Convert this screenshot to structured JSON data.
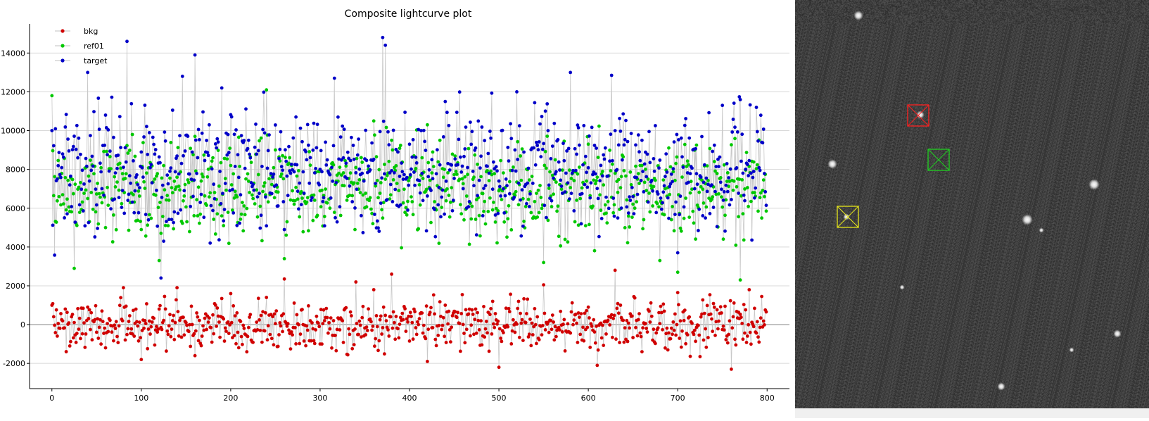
{
  "chart_data": {
    "type": "line",
    "title": "Composite lightcurve plot",
    "xlabel": "",
    "ylabel": "",
    "xlim": [
      -25,
      825
    ],
    "ylim": [
      -3300,
      15500
    ],
    "xticks": [
      0,
      100,
      200,
      300,
      400,
      500,
      600,
      700,
      800
    ],
    "yticks": [
      -2000,
      0,
      2000,
      4000,
      6000,
      8000,
      10000,
      12000,
      14000
    ],
    "grid": true,
    "legend_position": "top-left",
    "n_points": 800,
    "series": [
      {
        "name": "bkg",
        "color": "#d00000",
        "mean": 0,
        "spread": 750,
        "sample_x": [
          0,
          20,
          40,
          60,
          80,
          100,
          120,
          140,
          160,
          180,
          200,
          240,
          260,
          300,
          340,
          360,
          380,
          420,
          440,
          500,
          550,
          600,
          610,
          630,
          660,
          700,
          760,
          780,
          800
        ],
        "sample_y": [
          1000,
          -1100,
          900,
          -1200,
          1900,
          -1800,
          800,
          1900,
          -1600,
          500,
          1600,
          1400,
          2350,
          -1000,
          2200,
          1800,
          2600,
          -1900,
          1000,
          -2200,
          2050,
          900,
          -2100,
          2800,
          -1400,
          1650,
          -2300,
          1800,
          400
        ]
      },
      {
        "name": "ref01",
        "color": "#00c800",
        "mean": 7000,
        "spread": 1500,
        "sample_x": [
          0,
          25,
          40,
          60,
          80,
          100,
          120,
          140,
          160,
          180,
          200,
          240,
          260,
          300,
          340,
          360,
          380,
          420,
          440,
          500,
          550,
          600,
          630,
          660,
          680,
          700,
          740,
          770,
          800
        ],
        "sample_y": [
          11800,
          2900,
          6500,
          5000,
          7500,
          4900,
          3300,
          7600,
          9700,
          8600,
          8200,
          12100,
          3400,
          6900,
          8100,
          10500,
          9500,
          10300,
          6900,
          6900,
          3200,
          9300,
          7800,
          8200,
          3300,
          2700,
          7100,
          2300,
          6300
        ]
      },
      {
        "name": "target",
        "color": "#0000c8",
        "mean": 8000,
        "spread": 1900,
        "sample_x": [
          0,
          20,
          40,
          60,
          84,
          100,
          122,
          125,
          146,
          160,
          190,
          220,
          260,
          300,
          316,
          370,
          373,
          400,
          440,
          500,
          520,
          580,
          626,
          660,
          700,
          750,
          770,
          800
        ],
        "sample_y": [
          10000,
          7200,
          13000,
          10800,
          14600,
          8900,
          2400,
          4300,
          12800,
          13900,
          12200,
          9500,
          4900,
          8000,
          12700,
          14800,
          14400,
          9300,
          11500,
          7400,
          12000,
          13000,
          12850,
          9500,
          3700,
          11300,
          11600,
          9800
        ]
      }
    ]
  },
  "image_panel": {
    "background_color": "#3a3a3a",
    "box_colors": [
      "#ff2020",
      "#20d020",
      "#e6e61a"
    ]
  }
}
